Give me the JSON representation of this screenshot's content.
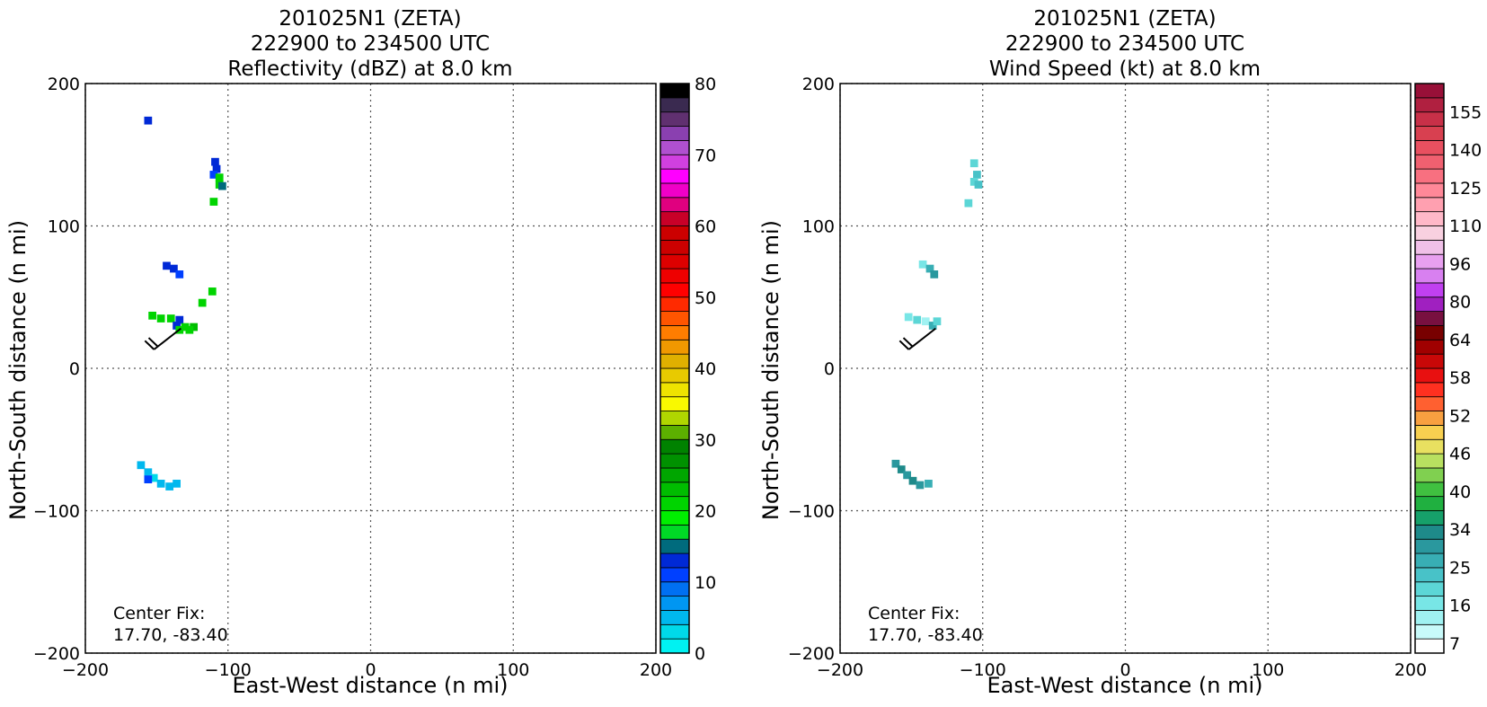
{
  "chart_data": [
    {
      "type": "heatmap",
      "title_lines": [
        "201025N1 (ZETA)",
        "222900 to 234500 UTC",
        "Reflectivity (dBZ) at 8.0 km"
      ],
      "xlabel": "East-West distance (n mi)",
      "ylabel": "North-South distance (n mi)",
      "xlim": [
        -200,
        200
      ],
      "ylim": [
        -200,
        200
      ],
      "xticks": [
        -200,
        -100,
        0,
        100,
        200
      ],
      "yticks": [
        -200,
        -100,
        0,
        100,
        200
      ],
      "xtick_labels": [
        "−200",
        "−100",
        "0",
        "100",
        "200"
      ],
      "ytick_labels": [
        "−200",
        "−100",
        "0",
        "100",
        "200"
      ],
      "grid": true,
      "annotation_lines": [
        "Center Fix:",
        "17.70, -83.40"
      ],
      "colorbar": {
        "min": 0,
        "max": 80,
        "ticks": [
          0,
          10,
          20,
          30,
          40,
          50,
          60,
          70,
          80
        ],
        "colors": [
          "#00f2f2",
          "#00d9e9",
          "#00b8ee",
          "#0096f2",
          "#0070f2",
          "#0040ff",
          "#0029d6",
          "#006b7d",
          "#00d926",
          "#00ef00",
          "#00d400",
          "#00bd00",
          "#00a600",
          "#009100",
          "#008200",
          "#5cb000",
          "#b0d600",
          "#f9f900",
          "#eee300",
          "#e8ca00",
          "#e0b000",
          "#f09800",
          "#ff7d00",
          "#ff5500",
          "#ff2a00",
          "#ff0000",
          "#ee0000",
          "#dd0000",
          "#cc0000",
          "#cc0000",
          "#c80028",
          "#e0007f",
          "#f000c8",
          "#ff00ff",
          "#d040e0",
          "#b050d0",
          "#8a40b0",
          "#603070",
          "#3a2a50",
          "#000000"
        ]
      },
      "cells": [
        {
          "x": -156,
          "y": 174,
          "v": 12
        },
        {
          "x": -109,
          "y": 145,
          "v": 12
        },
        {
          "x": -108,
          "y": 140,
          "v": 13
        },
        {
          "x": -110,
          "y": 136,
          "v": 11
        },
        {
          "x": -106,
          "y": 134,
          "v": 20
        },
        {
          "x": -106,
          "y": 129,
          "v": 21
        },
        {
          "x": -104,
          "y": 128,
          "v": 15
        },
        {
          "x": -110,
          "y": 117,
          "v": 20
        },
        {
          "x": -143,
          "y": 72,
          "v": 12
        },
        {
          "x": -138,
          "y": 70,
          "v": 13
        },
        {
          "x": -134,
          "y": 66,
          "v": 11
        },
        {
          "x": -118,
          "y": 46,
          "v": 21
        },
        {
          "x": -111,
          "y": 54,
          "v": 21
        },
        {
          "x": -153,
          "y": 37,
          "v": 21
        },
        {
          "x": -147,
          "y": 35,
          "v": 20
        },
        {
          "x": -140,
          "y": 35,
          "v": 21
        },
        {
          "x": -134,
          "y": 34,
          "v": 12
        },
        {
          "x": -136,
          "y": 30,
          "v": 13
        },
        {
          "x": -130,
          "y": 29,
          "v": 21
        },
        {
          "x": -124,
          "y": 29,
          "v": 22
        },
        {
          "x": -134,
          "y": 27,
          "v": 20
        },
        {
          "x": -127,
          "y": 27,
          "v": 20
        },
        {
          "x": -161,
          "y": -68,
          "v": 5
        },
        {
          "x": -156,
          "y": -73,
          "v": 4
        },
        {
          "x": -152,
          "y": -77,
          "v": 3
        },
        {
          "x": -156,
          "y": -78,
          "v": 11
        },
        {
          "x": -147,
          "y": -81,
          "v": 4
        },
        {
          "x": -141,
          "y": -83,
          "v": 5
        },
        {
          "x": -136,
          "y": -81,
          "v": 4
        }
      ],
      "wind_barb": {
        "x": -133,
        "y": 28,
        "direction_deg": 232,
        "speed_kt": 20
      }
    },
    {
      "type": "heatmap",
      "title_lines": [
        "201025N1 (ZETA)",
        "222900 to 234500 UTC",
        "Wind Speed (kt) at 8.0 km"
      ],
      "xlabel": "East-West distance (n mi)",
      "ylabel": "North-South distance (n mi)",
      "xlim": [
        -200,
        200
      ],
      "ylim": [
        -200,
        200
      ],
      "xticks": [
        -200,
        -100,
        0,
        100,
        200
      ],
      "yticks": [
        -200,
        -100,
        0,
        100,
        200
      ],
      "xtick_labels": [
        "−200",
        "−100",
        "0",
        "100",
        "200"
      ],
      "ytick_labels": [
        "−200",
        "−100",
        "0",
        "100",
        "200"
      ],
      "grid": true,
      "annotation_lines": [
        "Center Fix:",
        "17.70, -83.40"
      ],
      "colorbar": {
        "tick_labels": [
          "7",
          "16",
          "25",
          "34",
          "40",
          "46",
          "52",
          "58",
          "64",
          "80",
          "96",
          "110",
          "125",
          "140",
          "155"
        ],
        "colors": [
          "#ffffff",
          "#c8fafa",
          "#a0f2f2",
          "#78e6e6",
          "#5cd6d6",
          "#48c2c8",
          "#38aeb4",
          "#2a989e",
          "#1e8a8a",
          "#16a06a",
          "#20b040",
          "#40c040",
          "#80d050",
          "#b8e060",
          "#e8e060",
          "#f8d050",
          "#f8a040",
          "#ff6030",
          "#ff3020",
          "#e81010",
          "#c80808",
          "#a00000",
          "#780000",
          "#781040",
          "#a020c0",
          "#c040f0",
          "#d880f0",
          "#e8a0f0",
          "#f0c0e8",
          "#f8d0e0",
          "#ffb8c8",
          "#ffa0b0",
          "#ff8898",
          "#f87080",
          "#f06070",
          "#e85060",
          "#d84050",
          "#c83048",
          "#b02040",
          "#981038"
        ]
      },
      "cells": [
        {
          "x": -106,
          "y": 144,
          "v": 4
        },
        {
          "x": -104,
          "y": 136,
          "v": 5
        },
        {
          "x": -106,
          "y": 131,
          "v": 4
        },
        {
          "x": -103,
          "y": 129,
          "v": 5
        },
        {
          "x": -110,
          "y": 116,
          "v": 4
        },
        {
          "x": -142,
          "y": 73,
          "v": 3
        },
        {
          "x": -137,
          "y": 70,
          "v": 6
        },
        {
          "x": -134,
          "y": 66,
          "v": 7
        },
        {
          "x": -152,
          "y": 36,
          "v": 3
        },
        {
          "x": -146,
          "y": 34,
          "v": 4
        },
        {
          "x": -140,
          "y": 33,
          "v": 2
        },
        {
          "x": -135,
          "y": 30,
          "v": 6
        },
        {
          "x": -132,
          "y": 33,
          "v": 4
        },
        {
          "x": -161,
          "y": -67,
          "v": 7
        },
        {
          "x": -157,
          "y": -71,
          "v": 8
        },
        {
          "x": -153,
          "y": -75,
          "v": 7
        },
        {
          "x": -149,
          "y": -79,
          "v": 8
        },
        {
          "x": -144,
          "y": -82,
          "v": 7
        },
        {
          "x": -138,
          "y": -81,
          "v": 6
        }
      ],
      "wind_barb": {
        "x": -133,
        "y": 28,
        "direction_deg": 232,
        "speed_kt": 20
      }
    }
  ]
}
